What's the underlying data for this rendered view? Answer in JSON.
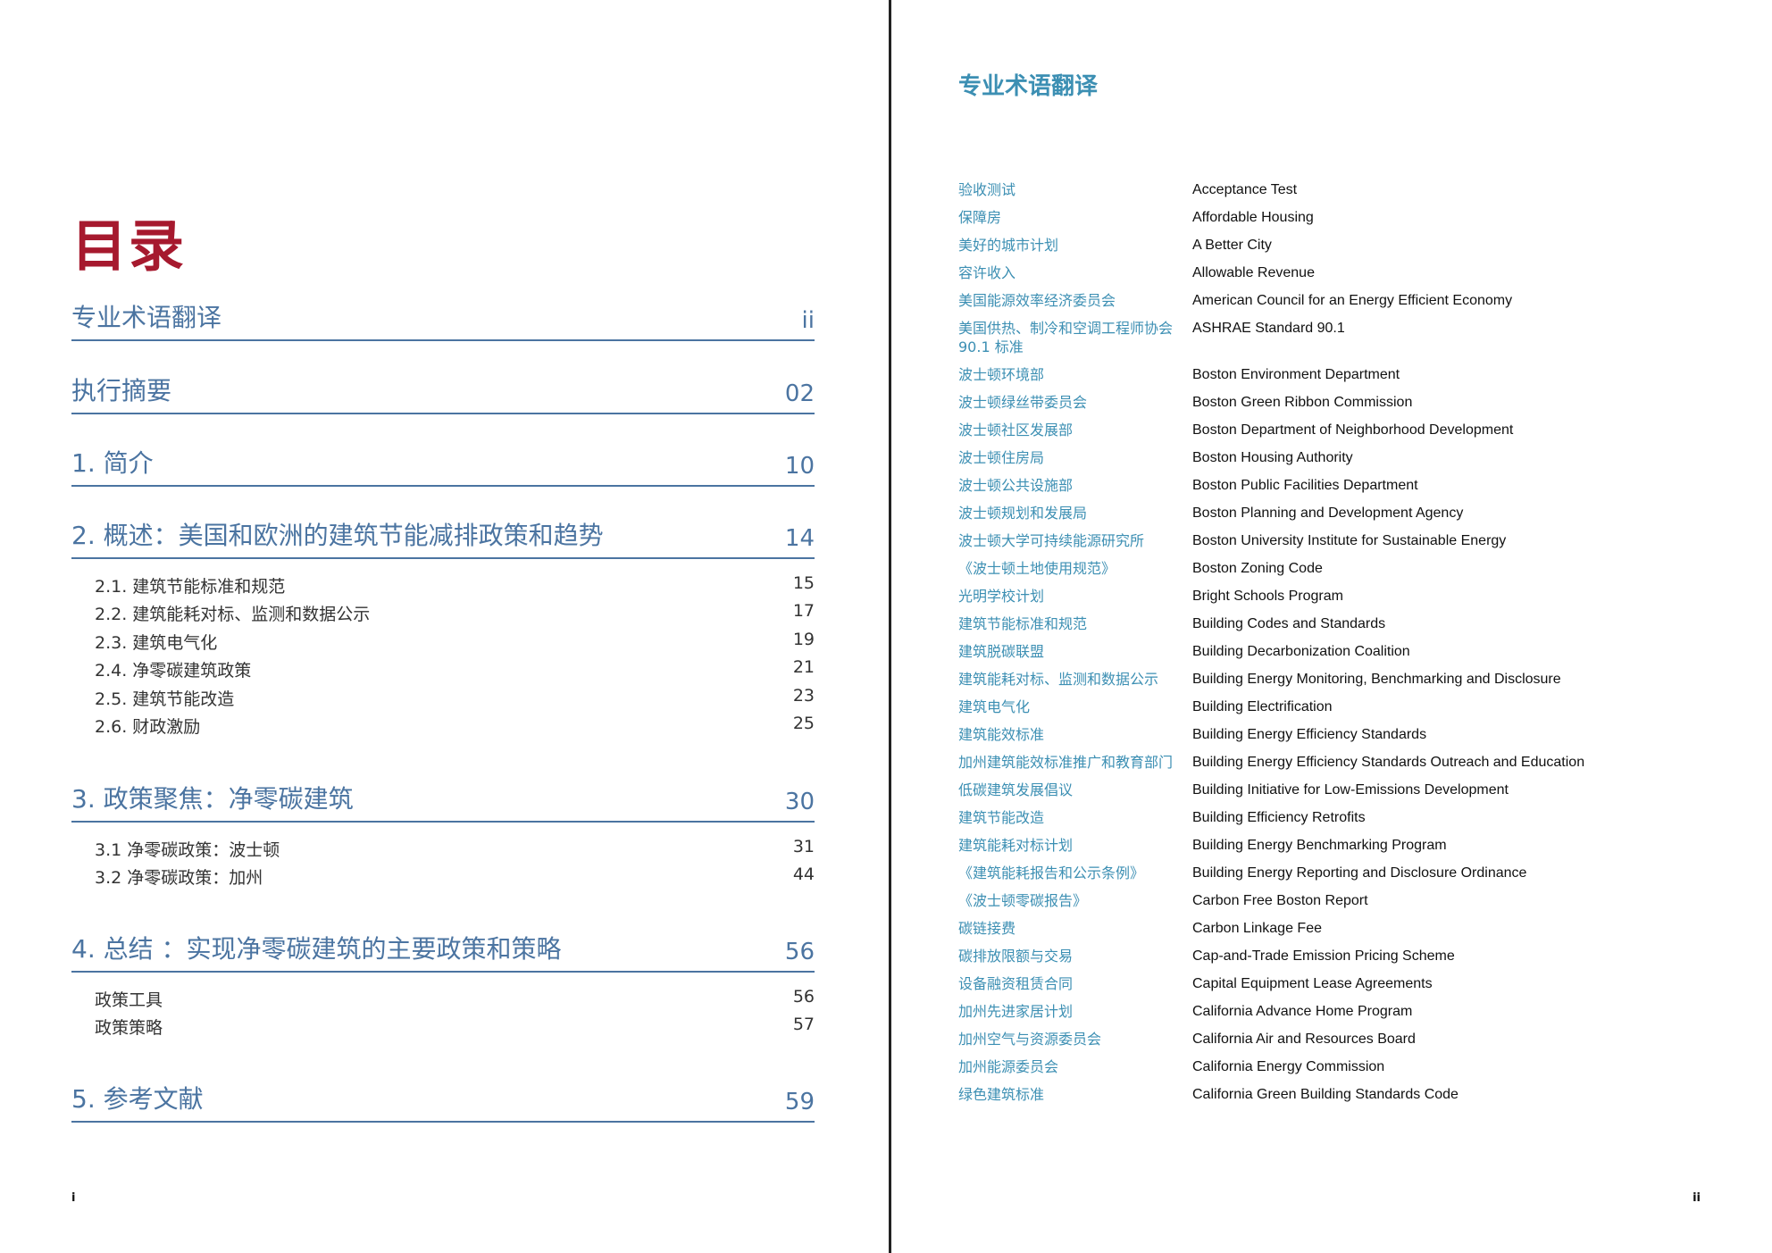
{
  "toc": {
    "title": "目录",
    "sections": [
      {
        "label": "专业术语翻译",
        "num": "ii",
        "subs": []
      },
      {
        "label": "执行摘要",
        "num": "02",
        "subs": []
      },
      {
        "label": "1. 简介",
        "num": "10",
        "subs": []
      },
      {
        "label": "2. 概述：美国和欧洲的建筑节能减排政策和趋势",
        "num": "14",
        "subs": [
          {
            "label": "2.1. 建筑节能标准和规范",
            "num": "15"
          },
          {
            "label": "2.2. 建筑能耗对标、监测和数据公示",
            "num": "17"
          },
          {
            "label": "2.3. 建筑电气化",
            "num": "19"
          },
          {
            "label": "2.4. 净零碳建筑政策",
            "num": "21"
          },
          {
            "label": "2.5. 建筑节能改造",
            "num": "23"
          },
          {
            "label": "2.6. 财政激励",
            "num": "25"
          }
        ]
      },
      {
        "label": "3. 政策聚焦：净零碳建筑",
        "num": "30",
        "subs": [
          {
            "label": "3.1 净零碳政策：波士顿",
            "num": "31"
          },
          {
            "label": "3.2 净零碳政策：加州",
            "num": "44"
          }
        ]
      },
      {
        "label": "4. 总结 ：实现净零碳建筑的主要政策和策略",
        "num": "56",
        "subs": [
          {
            "label": "政策工具",
            "num": "56"
          },
          {
            "label": "政策策略",
            "num": "57"
          }
        ]
      },
      {
        "label": "5. 参考文献",
        "num": "59",
        "subs": []
      }
    ],
    "page_number": "i"
  },
  "glossary": {
    "title": "专业术语翻译",
    "items": [
      {
        "cn": "验收测试",
        "en": "Acceptance Test"
      },
      {
        "cn": "保障房",
        "en": "Affordable Housing"
      },
      {
        "cn": "美好的城市计划",
        "en": "A Better City"
      },
      {
        "cn": "容许收入",
        "en": "Allowable Revenue"
      },
      {
        "cn": "美国能源效率经济委员会",
        "en": "American Council for an Energy Efficient Economy"
      },
      {
        "cn": "美国供热、制冷和空调工程师协会 90.1 标准",
        "en": "ASHRAE Standard 90.1"
      },
      {
        "cn": "波士顿环境部",
        "en": "Boston Environment Department"
      },
      {
        "cn": "波士顿绿丝带委员会",
        "en": "Boston Green Ribbon Commission"
      },
      {
        "cn": "波士顿社区发展部",
        "en": "Boston Department of Neighborhood Development"
      },
      {
        "cn": "波士顿住房局",
        "en": "Boston Housing Authority"
      },
      {
        "cn": "波士顿公共设施部",
        "en": "Boston Public Facilities Department"
      },
      {
        "cn": "波士顿规划和发展局",
        "en": "Boston Planning and Development Agency"
      },
      {
        "cn": "波士顿大学可持续能源研究所",
        "en": "Boston University Institute for Sustainable Energy"
      },
      {
        "cn": "《波士顿土地使用规范》",
        "en": "Boston Zoning Code"
      },
      {
        "cn": "光明学校计划",
        "en": "Bright Schools Program"
      },
      {
        "cn": "建筑节能标准和规范",
        "en": "Building Codes and Standards"
      },
      {
        "cn": "建筑脱碳联盟",
        "en": "Building Decarbonization Coalition"
      },
      {
        "cn": "建筑能耗对标、监测和数据公示",
        "en": "Building Energy Monitoring, Benchmarking and Disclosure"
      },
      {
        "cn": "建筑电气化",
        "en": "Building Electrification"
      },
      {
        "cn": "建筑能效标准",
        "en": "Building Energy Efficiency Standards"
      },
      {
        "cn": "加州建筑能效标准推广和教育部门",
        "en": "Building Energy Efficiency Standards Outreach and Education"
      },
      {
        "cn": "低碳建筑发展倡议",
        "en": "Building Initiative for Low-Emissions Development"
      },
      {
        "cn": "建筑节能改造",
        "en": "Building Efficiency Retrofits"
      },
      {
        "cn": "建筑能耗对标计划",
        "en": "Building Energy Benchmarking Program"
      },
      {
        "cn": "《建筑能耗报告和公示条例》",
        "en": "Building Energy Reporting and Disclosure Ordinance"
      },
      {
        "cn": "《波士顿零碳报告》",
        "en": "Carbon Free Boston Report"
      },
      {
        "cn": "碳链接费",
        "en": "Carbon Linkage Fee"
      },
      {
        "cn": "碳排放限额与交易",
        "en": "Cap-and-Trade Emission Pricing Scheme"
      },
      {
        "cn": "设备融资租赁合同",
        "en": "Capital Equipment Lease Agreements"
      },
      {
        "cn": "加州先进家居计划",
        "en": "California Advance Home Program"
      },
      {
        "cn": "加州空气与资源委员会",
        "en": "California Air and Resources Board"
      },
      {
        "cn": "加州能源委员会",
        "en": "California Energy Commission"
      },
      {
        "cn": "绿色建筑标准",
        "en": "California Green Building Standards Code"
      }
    ],
    "page_number": "ii"
  }
}
